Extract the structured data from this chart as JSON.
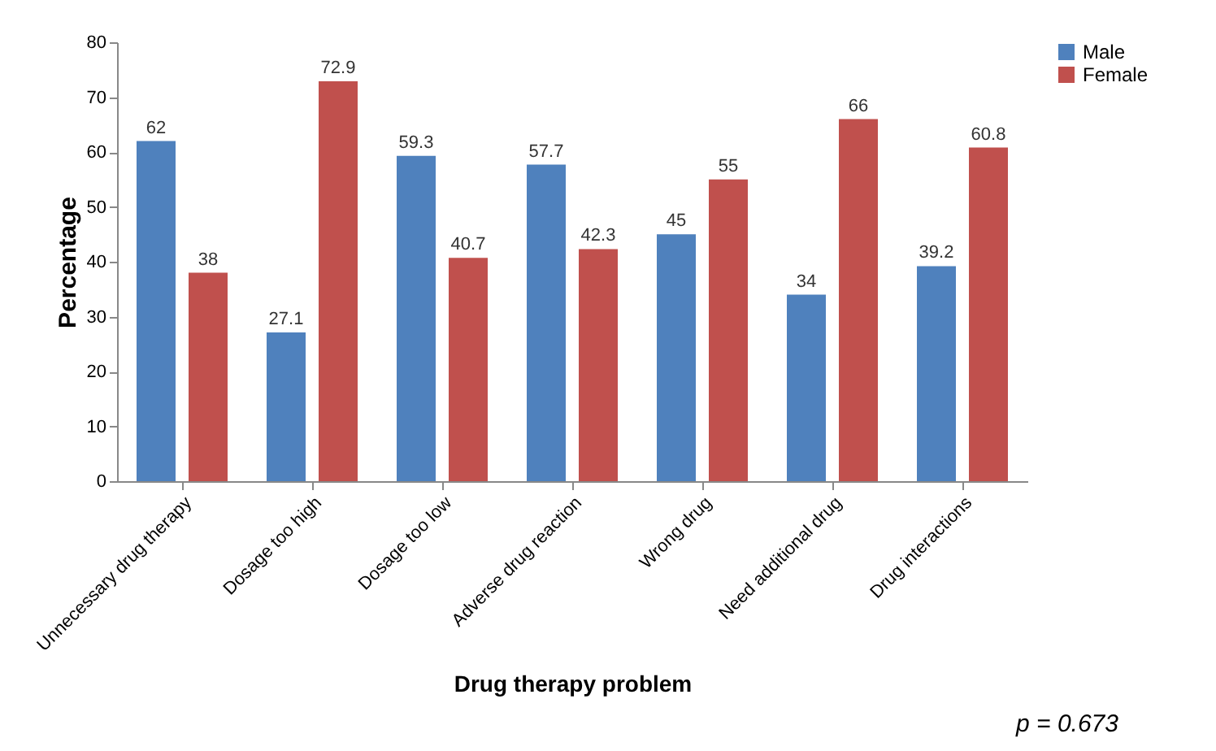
{
  "chart_data": {
    "type": "bar",
    "xlabel": "Drug therapy  problem",
    "ylabel": "Percentage",
    "categories": [
      "Unnecessary drug therapy",
      "Dosage  too high",
      "Dosage too low",
      "Adverse drug reaction",
      "Wrong drug",
      "Need additional drug",
      "Drug interactions"
    ],
    "series": [
      {
        "name": "Male",
        "color": "#4f81bd",
        "values": [
          62,
          27.1,
          59.3,
          57.7,
          45,
          34,
          39.2
        ]
      },
      {
        "name": "Female",
        "color": "#c0504d",
        "values": [
          38,
          72.9,
          40.7,
          42.3,
          55,
          66,
          60.8
        ]
      }
    ],
    "ylim": [
      0,
      80
    ],
    "yticks": [
      0,
      10,
      20,
      30,
      40,
      50,
      60,
      70,
      80
    ],
    "grid": false,
    "legend": "right",
    "data_labels": true,
    "annotations": [
      "p = 0.673"
    ]
  }
}
